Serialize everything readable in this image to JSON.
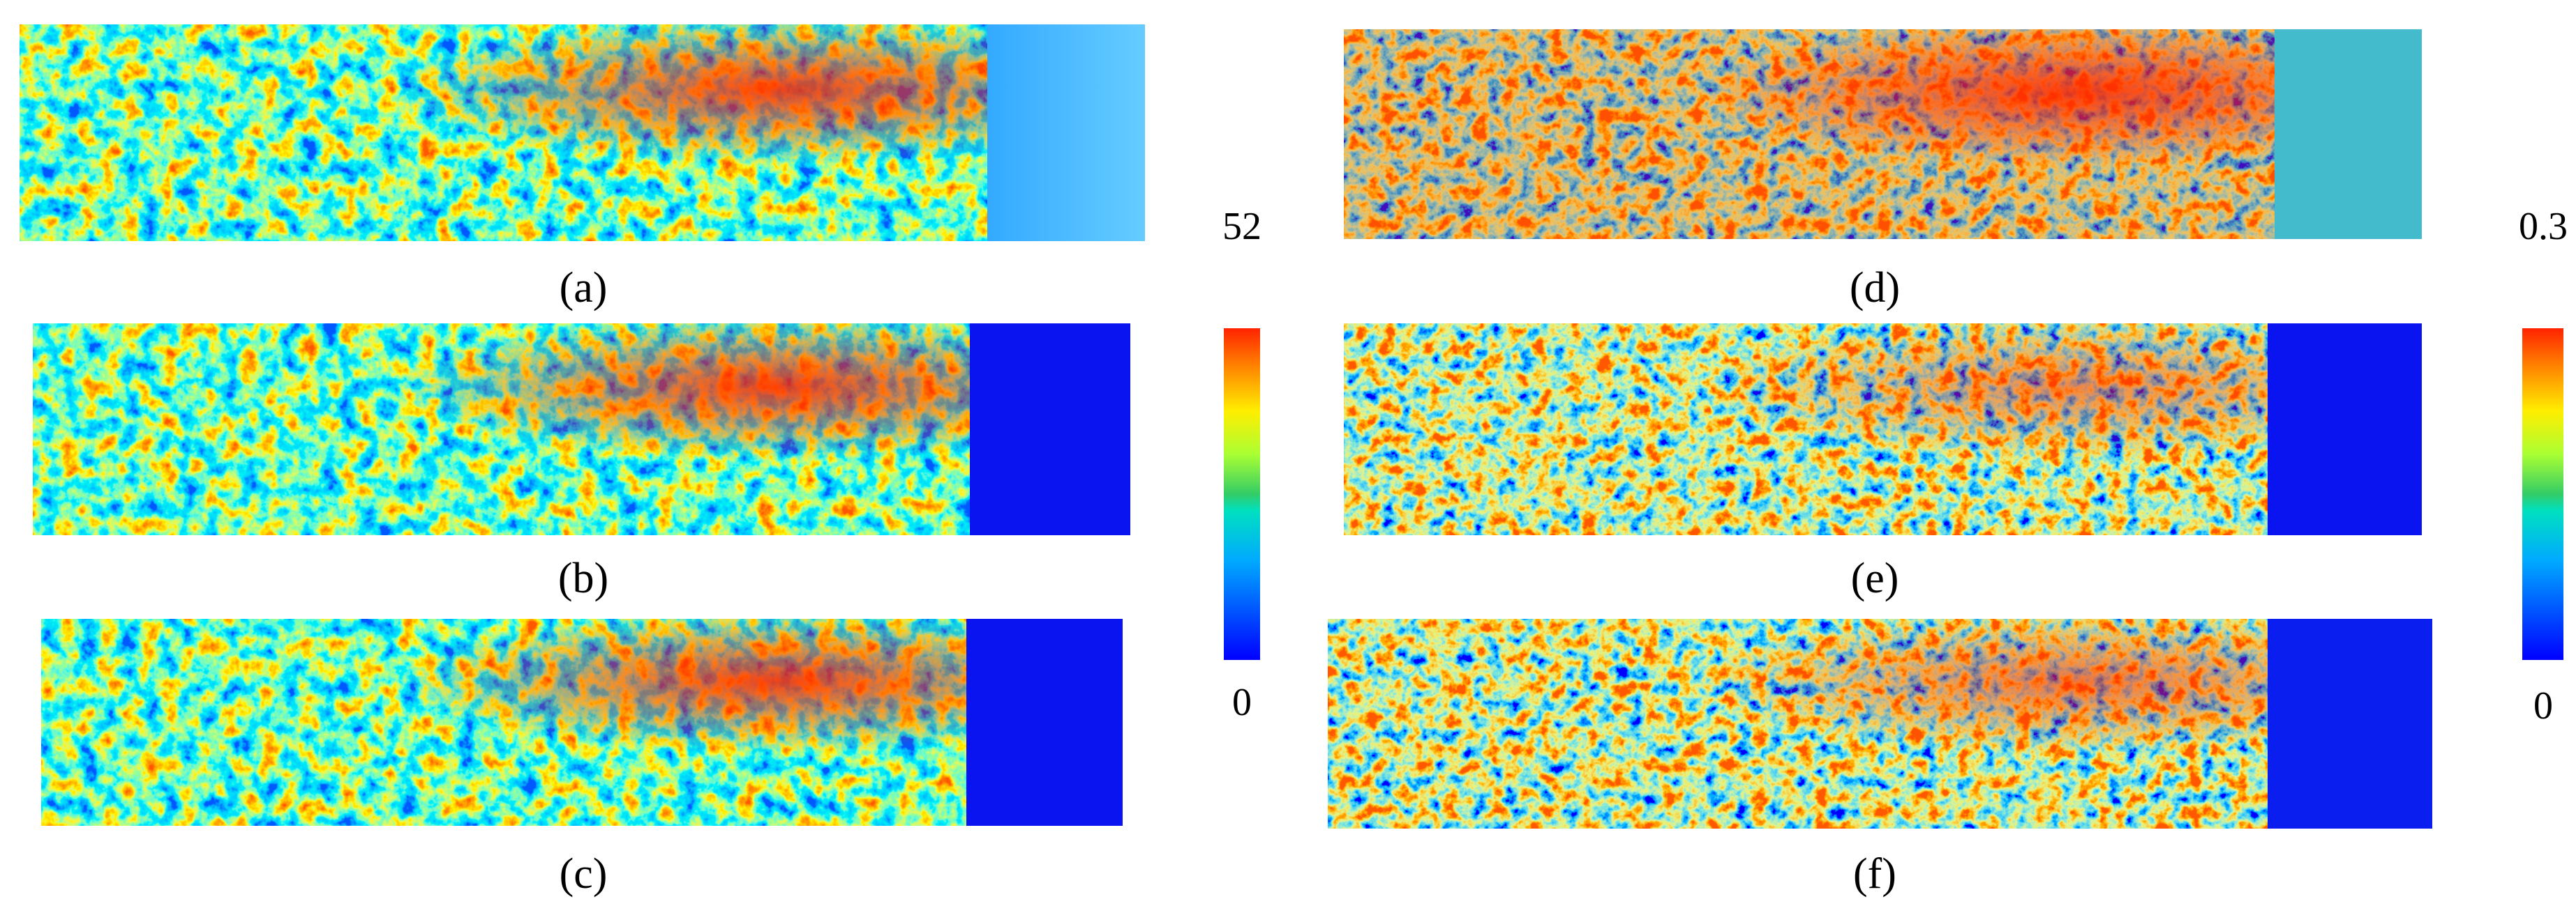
{
  "panels": [
    {
      "label": "(a)"
    },
    {
      "label": "(b)"
    },
    {
      "label": "(c)"
    },
    {
      "label": "(d)"
    },
    {
      "label": "(e)"
    },
    {
      "label": "(f)"
    }
  ],
  "colorbars": [
    {
      "max": "52",
      "min": "0"
    },
    {
      "max": "0.3",
      "min": "0"
    }
  ]
}
